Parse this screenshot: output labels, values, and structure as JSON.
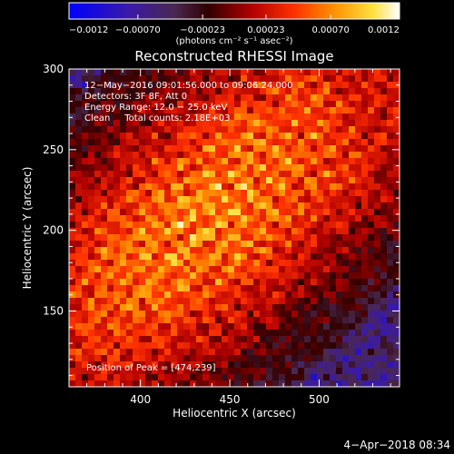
{
  "chart_data": {
    "type": "heatmap",
    "title": "Reconstructed RHESSI Image",
    "xlabel": "Heliocentric X (arcsec)",
    "ylabel": "Heliocentric Y (arcsec)",
    "xlim": [
      360,
      545
    ],
    "ylim": [
      103,
      300
    ],
    "xticks": [
      400,
      450,
      500
    ],
    "yticks": [
      150,
      200,
      250,
      300
    ],
    "colorbar": {
      "range": [
        -0.0012,
        0.0012
      ],
      "tick_values": [
        -0.0012,
        -0.0007,
        -0.00023,
        0.00023,
        0.0007,
        0.0012
      ],
      "tick_labels": [
        "−0.0012",
        "−0.00070",
        "−0.00023",
        "0.00023",
        "0.00070",
        "0.0012"
      ],
      "label": "(photons cm⁻² s⁻¹ asec⁻²)"
    },
    "peak": [
      474,
      239
    ],
    "annotations": [
      "12−May−2016 09:01:56.000 to 09:06:24.000",
      "Detectors: 3F 8F, Att 0",
      "Energy Range: 12.0 − 25.0 keV",
      "Clean     Total counts: 2.18E+03"
    ],
    "peak_annotation": "Position of Peak = [474,239]",
    "grid": false,
    "legend": "none"
  },
  "footer": {
    "timestamp": "4−Apr−2018 08:34"
  }
}
